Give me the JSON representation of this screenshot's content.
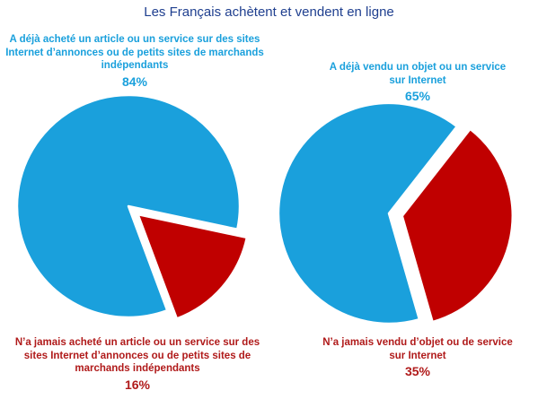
{
  "title": "Les Français achètent et vendent en ligne",
  "colors": {
    "title": "#1f3f8f",
    "blue": "#1aa0dc",
    "red": "#c00000"
  },
  "chart_data": [
    {
      "type": "pie",
      "slices": [
        {
          "label": "A déjà acheté un article ou un service sur des sites Internet d’annonces ou de petits sites de marchands indépendants",
          "value": 84,
          "value_label": "84%",
          "color": "#1aa0dc"
        },
        {
          "label": "N’a jamais acheté un article ou un service sur des sites Internet d’annonces ou de petits sites de marchands indépendants",
          "value": 16,
          "value_label": "16%",
          "color": "#c00000",
          "exploded": true
        }
      ]
    },
    {
      "type": "pie",
      "slices": [
        {
          "label": "A déjà vendu un objet ou un service sur Internet",
          "value": 65,
          "value_label": "65%",
          "color": "#1aa0dc"
        },
        {
          "label": "N’a jamais vendu d’objet ou de service sur Internet",
          "value": 35,
          "value_label": "35%",
          "color": "#c00000",
          "exploded": true
        }
      ]
    }
  ]
}
